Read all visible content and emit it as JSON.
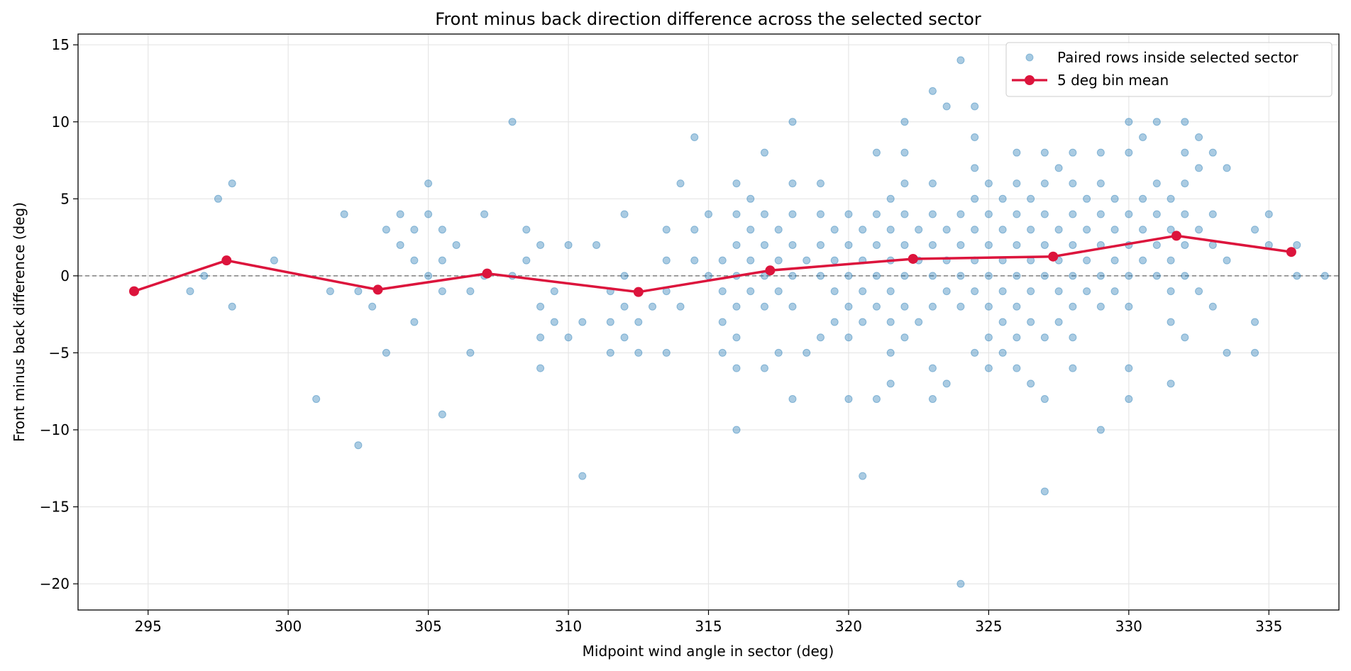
{
  "chart_data": {
    "type": "scatter",
    "title": "Front minus back direction difference across the selected sector",
    "xlabel": "Midpoint wind angle in sector (deg)",
    "ylabel": "Front minus back difference (deg)",
    "xlim": [
      292.5,
      337.5
    ],
    "ylim": [
      -21.7,
      15.7
    ],
    "xticks": [
      295,
      300,
      305,
      310,
      315,
      320,
      325,
      330,
      335
    ],
    "yticks": [
      15,
      10,
      5,
      0,
      -5,
      -10,
      -15,
      -20
    ],
    "ytick_labels": [
      "15",
      "10",
      "5",
      "0",
      "−5",
      "−10",
      "−15",
      "−20"
    ],
    "grid": true,
    "legend_position": "top-right",
    "reference_line": {
      "y": 0,
      "style": "dashed",
      "color": "#7f7f7f"
    },
    "series": [
      {
        "name": "Paired rows inside selected sector",
        "kind": "scatter",
        "color": "#1f77b4",
        "points": [
          [
            294.5,
            -1
          ],
          [
            296.5,
            -1
          ],
          [
            297,
            0
          ],
          [
            297.5,
            5
          ],
          [
            298,
            6
          ],
          [
            298,
            -2
          ],
          [
            299.5,
            1
          ],
          [
            301,
            -8
          ],
          [
            301.5,
            -1
          ],
          [
            302,
            4
          ],
          [
            302.5,
            -1
          ],
          [
            302.5,
            -11
          ],
          [
            303,
            -2
          ],
          [
            303.5,
            3
          ],
          [
            303.5,
            -5
          ],
          [
            304,
            4
          ],
          [
            304,
            2
          ],
          [
            304.5,
            3
          ],
          [
            304.5,
            1
          ],
          [
            304.5,
            -3
          ],
          [
            305,
            6
          ],
          [
            305,
            4
          ],
          [
            305,
            0
          ],
          [
            305.5,
            3
          ],
          [
            305.5,
            1
          ],
          [
            305.5,
            -1
          ],
          [
            305.5,
            -9
          ],
          [
            306,
            2
          ],
          [
            306.5,
            -1
          ],
          [
            306.5,
            -5
          ],
          [
            307,
            4
          ],
          [
            307,
            0
          ],
          [
            308,
            10
          ],
          [
            308,
            0
          ],
          [
            308.5,
            3
          ],
          [
            308.5,
            1
          ],
          [
            309,
            2
          ],
          [
            309,
            -2
          ],
          [
            309,
            -4
          ],
          [
            309,
            -6
          ],
          [
            309.5,
            -1
          ],
          [
            309.5,
            -3
          ],
          [
            310,
            2
          ],
          [
            310,
            -4
          ],
          [
            310.5,
            -3
          ],
          [
            310.5,
            -13
          ],
          [
            311,
            2
          ],
          [
            311.5,
            -1
          ],
          [
            311.5,
            -3
          ],
          [
            311.5,
            -5
          ],
          [
            312,
            4
          ],
          [
            312,
            0
          ],
          [
            312,
            -2
          ],
          [
            312,
            -4
          ],
          [
            312.5,
            -1
          ],
          [
            312.5,
            -3
          ],
          [
            312.5,
            -5
          ],
          [
            313,
            -2
          ],
          [
            313.5,
            3
          ],
          [
            313.5,
            1
          ],
          [
            313.5,
            -1
          ],
          [
            313.5,
            -5
          ],
          [
            314,
            6
          ],
          [
            314,
            -2
          ],
          [
            314.5,
            9
          ],
          [
            314.5,
            3
          ],
          [
            314.5,
            1
          ],
          [
            315,
            4
          ],
          [
            315,
            0
          ],
          [
            315.5,
            1
          ],
          [
            315.5,
            -1
          ],
          [
            315.5,
            -3
          ],
          [
            315.5,
            -5
          ],
          [
            316,
            6
          ],
          [
            316,
            4
          ],
          [
            316,
            2
          ],
          [
            316,
            0
          ],
          [
            316,
            -2
          ],
          [
            316,
            -4
          ],
          [
            316,
            -6
          ],
          [
            316,
            -10
          ],
          [
            316.5,
            5
          ],
          [
            316.5,
            3
          ],
          [
            316.5,
            1
          ],
          [
            316.5,
            -1
          ],
          [
            317,
            8
          ],
          [
            317,
            4
          ],
          [
            317,
            2
          ],
          [
            317,
            0
          ],
          [
            317,
            -2
          ],
          [
            317,
            -6
          ],
          [
            317.5,
            3
          ],
          [
            317.5,
            1
          ],
          [
            317.5,
            -1
          ],
          [
            317.5,
            -5
          ],
          [
            318,
            10
          ],
          [
            318,
            6
          ],
          [
            318,
            4
          ],
          [
            318,
            2
          ],
          [
            318,
            0
          ],
          [
            318,
            -2
          ],
          [
            318,
            -8
          ],
          [
            318.5,
            1
          ],
          [
            318.5,
            -5
          ],
          [
            319,
            6
          ],
          [
            319,
            4
          ],
          [
            319,
            2
          ],
          [
            319,
            0
          ],
          [
            319,
            -4
          ],
          [
            319.5,
            3
          ],
          [
            319.5,
            1
          ],
          [
            319.5,
            -1
          ],
          [
            319.5,
            -3
          ],
          [
            320,
            4
          ],
          [
            320,
            2
          ],
          [
            320,
            0
          ],
          [
            320,
            -2
          ],
          [
            320,
            -4
          ],
          [
            320,
            -8
          ],
          [
            320.5,
            3
          ],
          [
            320.5,
            1
          ],
          [
            320.5,
            -1
          ],
          [
            320.5,
            -3
          ],
          [
            320.5,
            -13
          ],
          [
            321,
            8
          ],
          [
            321,
            4
          ],
          [
            321,
            2
          ],
          [
            321,
            0
          ],
          [
            321,
            -2
          ],
          [
            321,
            -8
          ],
          [
            321.5,
            5
          ],
          [
            321.5,
            3
          ],
          [
            321.5,
            1
          ],
          [
            321.5,
            -1
          ],
          [
            321.5,
            -3
          ],
          [
            321.5,
            -5
          ],
          [
            321.5,
            -7
          ],
          [
            322,
            10
          ],
          [
            322,
            8
          ],
          [
            322,
            6
          ],
          [
            322,
            4
          ],
          [
            322,
            2
          ],
          [
            322,
            0
          ],
          [
            322,
            -2
          ],
          [
            322,
            -4
          ],
          [
            322.5,
            3
          ],
          [
            322.5,
            1
          ],
          [
            322.5,
            -3
          ],
          [
            323,
            12
          ],
          [
            323,
            6
          ],
          [
            323,
            4
          ],
          [
            323,
            2
          ],
          [
            323,
            0
          ],
          [
            323,
            -2
          ],
          [
            323,
            -6
          ],
          [
            323,
            -8
          ],
          [
            323.5,
            11
          ],
          [
            323.5,
            3
          ],
          [
            323.5,
            1
          ],
          [
            323.5,
            -1
          ],
          [
            323.5,
            -7
          ],
          [
            324,
            14
          ],
          [
            324,
            4
          ],
          [
            324,
            2
          ],
          [
            324,
            0
          ],
          [
            324,
            -2
          ],
          [
            324,
            -20
          ],
          [
            324.5,
            11
          ],
          [
            324.5,
            9
          ],
          [
            324.5,
            7
          ],
          [
            324.5,
            5
          ],
          [
            324.5,
            3
          ],
          [
            324.5,
            1
          ],
          [
            324.5,
            -1
          ],
          [
            324.5,
            -5
          ],
          [
            325,
            6
          ],
          [
            325,
            4
          ],
          [
            325,
            2
          ],
          [
            325,
            0
          ],
          [
            325,
            -2
          ],
          [
            325,
            -4
          ],
          [
            325,
            -6
          ],
          [
            325.5,
            5
          ],
          [
            325.5,
            3
          ],
          [
            325.5,
            1
          ],
          [
            325.5,
            -1
          ],
          [
            325.5,
            -3
          ],
          [
            325.5,
            -5
          ],
          [
            326,
            8
          ],
          [
            326,
            6
          ],
          [
            326,
            4
          ],
          [
            326,
            2
          ],
          [
            326,
            0
          ],
          [
            326,
            -2
          ],
          [
            326,
            -4
          ],
          [
            326,
            -6
          ],
          [
            326.5,
            5
          ],
          [
            326.5,
            3
          ],
          [
            326.5,
            1
          ],
          [
            326.5,
            -1
          ],
          [
            326.5,
            -3
          ],
          [
            326.5,
            -7
          ],
          [
            327,
            8
          ],
          [
            327,
            6
          ],
          [
            327,
            4
          ],
          [
            327,
            2
          ],
          [
            327,
            0
          ],
          [
            327,
            -4
          ],
          [
            327,
            -8
          ],
          [
            327,
            -14
          ],
          [
            327.5,
            7
          ],
          [
            327.5,
            3
          ],
          [
            327.5,
            1
          ],
          [
            327.5,
            -1
          ],
          [
            327.5,
            -3
          ],
          [
            328,
            8
          ],
          [
            328,
            6
          ],
          [
            328,
            4
          ],
          [
            328,
            2
          ],
          [
            328,
            0
          ],
          [
            328,
            -2
          ],
          [
            328,
            -4
          ],
          [
            328,
            -6
          ],
          [
            328.5,
            5
          ],
          [
            328.5,
            3
          ],
          [
            328.5,
            1
          ],
          [
            328.5,
            -1
          ],
          [
            329,
            8
          ],
          [
            329,
            6
          ],
          [
            329,
            4
          ],
          [
            329,
            2
          ],
          [
            329,
            0
          ],
          [
            329,
            -2
          ],
          [
            329,
            -10
          ],
          [
            329.5,
            5
          ],
          [
            329.5,
            3
          ],
          [
            329.5,
            1
          ],
          [
            329.5,
            -1
          ],
          [
            330,
            10
          ],
          [
            330,
            8
          ],
          [
            330,
            4
          ],
          [
            330,
            2
          ],
          [
            330,
            0
          ],
          [
            330,
            -2
          ],
          [
            330,
            -6
          ],
          [
            330,
            -8
          ],
          [
            330.5,
            9
          ],
          [
            330.5,
            5
          ],
          [
            330.5,
            3
          ],
          [
            330.5,
            1
          ],
          [
            331,
            10
          ],
          [
            331,
            6
          ],
          [
            331,
            4
          ],
          [
            331,
            2
          ],
          [
            331,
            0
          ],
          [
            331.5,
            5
          ],
          [
            331.5,
            3
          ],
          [
            331.5,
            1
          ],
          [
            331.5,
            -1
          ],
          [
            331.5,
            -3
          ],
          [
            331.5,
            -7
          ],
          [
            332,
            10
          ],
          [
            332,
            8
          ],
          [
            332,
            6
          ],
          [
            332,
            4
          ],
          [
            332,
            2
          ],
          [
            332,
            0
          ],
          [
            332,
            -4
          ],
          [
            332.5,
            9
          ],
          [
            332.5,
            7
          ],
          [
            332.5,
            3
          ],
          [
            332.5,
            -1
          ],
          [
            333,
            8
          ],
          [
            333,
            4
          ],
          [
            333,
            2
          ],
          [
            333,
            -2
          ],
          [
            333.5,
            7
          ],
          [
            333.5,
            1
          ],
          [
            333.5,
            -5
          ],
          [
            334.5,
            3
          ],
          [
            334.5,
            -3
          ],
          [
            334.5,
            -5
          ],
          [
            335,
            4
          ],
          [
            335,
            2
          ],
          [
            336,
            2
          ],
          [
            336,
            0
          ],
          [
            337,
            0
          ]
        ]
      },
      {
        "name": "5 deg bin mean",
        "kind": "line",
        "color": "#dc143c",
        "points": [
          [
            294.5,
            -1.0
          ],
          [
            297.8,
            1.0
          ],
          [
            303.2,
            -0.9
          ],
          [
            307.1,
            0.15
          ],
          [
            312.5,
            -1.05
          ],
          [
            317.2,
            0.35
          ],
          [
            322.3,
            1.1
          ],
          [
            327.3,
            1.25
          ],
          [
            331.7,
            2.6
          ],
          [
            335.8,
            1.55
          ]
        ]
      }
    ]
  }
}
